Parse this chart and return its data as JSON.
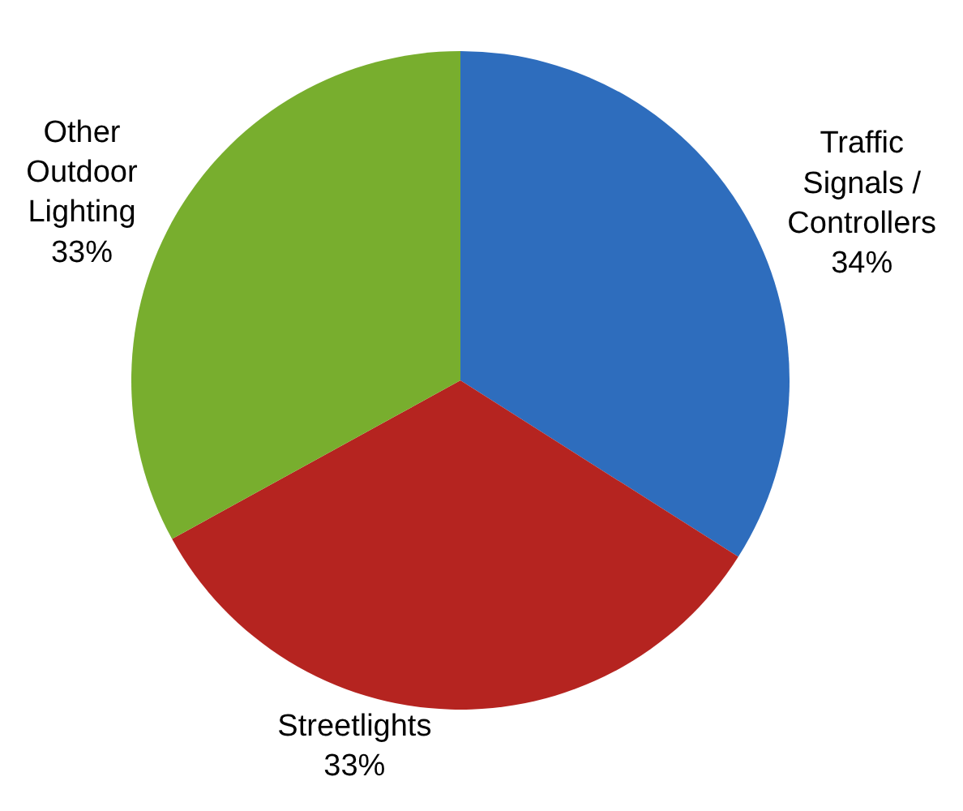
{
  "chart_data": {
    "type": "pie",
    "categories": [
      "Traffic Signals / Controllers",
      "Streetlights",
      "Other Outdoor Lighting"
    ],
    "values": [
      34,
      33,
      33
    ],
    "value_labels": [
      "34%",
      "33%",
      "33%"
    ],
    "colors": [
      "#2e6dbd",
      "#b52420",
      "#78ae2e"
    ]
  }
}
